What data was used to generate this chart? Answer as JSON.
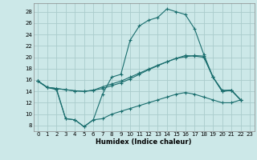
{
  "title": "",
  "xlabel": "Humidex (Indice chaleur)",
  "bg_color": "#cce8e8",
  "grid_color": "#aacccc",
  "line_color": "#1a6e6e",
  "xlim": [
    -0.5,
    23.5
  ],
  "ylim": [
    7.0,
    29.5
  ],
  "yticks": [
    8,
    10,
    12,
    14,
    16,
    18,
    20,
    22,
    24,
    26,
    28
  ],
  "xticks": [
    0,
    1,
    2,
    3,
    4,
    5,
    6,
    7,
    8,
    9,
    10,
    11,
    12,
    13,
    14,
    15,
    16,
    17,
    18,
    19,
    20,
    21,
    22,
    23
  ],
  "series0_x": [
    0,
    1,
    2,
    3,
    4,
    5,
    6,
    7,
    8,
    9,
    10,
    11,
    12,
    13,
    14,
    15,
    16,
    17,
    18,
    19,
    20,
    21,
    22
  ],
  "series0_y": [
    15.8,
    14.7,
    14.5,
    9.2,
    9.0,
    7.8,
    9.0,
    13.5,
    16.5,
    17.0,
    23.0,
    25.5,
    26.5,
    27.0,
    28.5,
    28.0,
    27.5,
    25.0,
    20.5,
    16.5,
    14.0,
    14.2,
    12.5
  ],
  "series1_x": [
    0,
    1,
    2,
    3,
    4,
    5,
    6,
    7,
    8,
    9,
    10,
    11,
    12,
    13,
    14,
    15,
    16,
    17,
    18,
    19,
    20,
    21,
    22
  ],
  "series1_y": [
    15.8,
    14.7,
    14.5,
    14.3,
    14.1,
    14.0,
    14.2,
    14.5,
    15.0,
    15.5,
    16.2,
    17.0,
    17.8,
    18.5,
    19.2,
    19.8,
    20.3,
    20.2,
    20.0,
    16.5,
    14.0,
    14.2,
    12.5
  ],
  "series2_x": [
    0,
    1,
    2,
    3,
    4,
    5,
    6,
    7,
    8,
    9,
    10,
    11,
    12,
    13,
    14,
    15,
    16,
    17,
    18,
    19,
    20,
    21,
    22
  ],
  "series2_y": [
    15.8,
    14.7,
    14.5,
    14.3,
    14.1,
    14.0,
    14.2,
    14.8,
    15.3,
    15.8,
    16.5,
    17.2,
    17.9,
    18.6,
    19.2,
    19.8,
    20.1,
    20.3,
    20.2,
    16.5,
    14.2,
    14.2,
    12.5
  ],
  "series3_x": [
    0,
    1,
    2,
    3,
    4,
    5,
    6,
    7,
    8,
    9,
    10,
    11,
    12,
    13,
    14,
    15,
    16,
    17,
    18,
    19,
    20,
    21,
    22
  ],
  "series3_y": [
    15.8,
    14.7,
    14.3,
    9.2,
    9.0,
    7.8,
    9.0,
    9.2,
    10.0,
    10.5,
    11.0,
    11.5,
    12.0,
    12.5,
    13.0,
    13.5,
    13.8,
    13.5,
    13.0,
    12.5,
    12.0,
    12.0,
    12.5
  ],
  "lw": 0.8,
  "ms": 2.5,
  "xlabel_fontsize": 6.0,
  "tick_fontsize": 5.0
}
